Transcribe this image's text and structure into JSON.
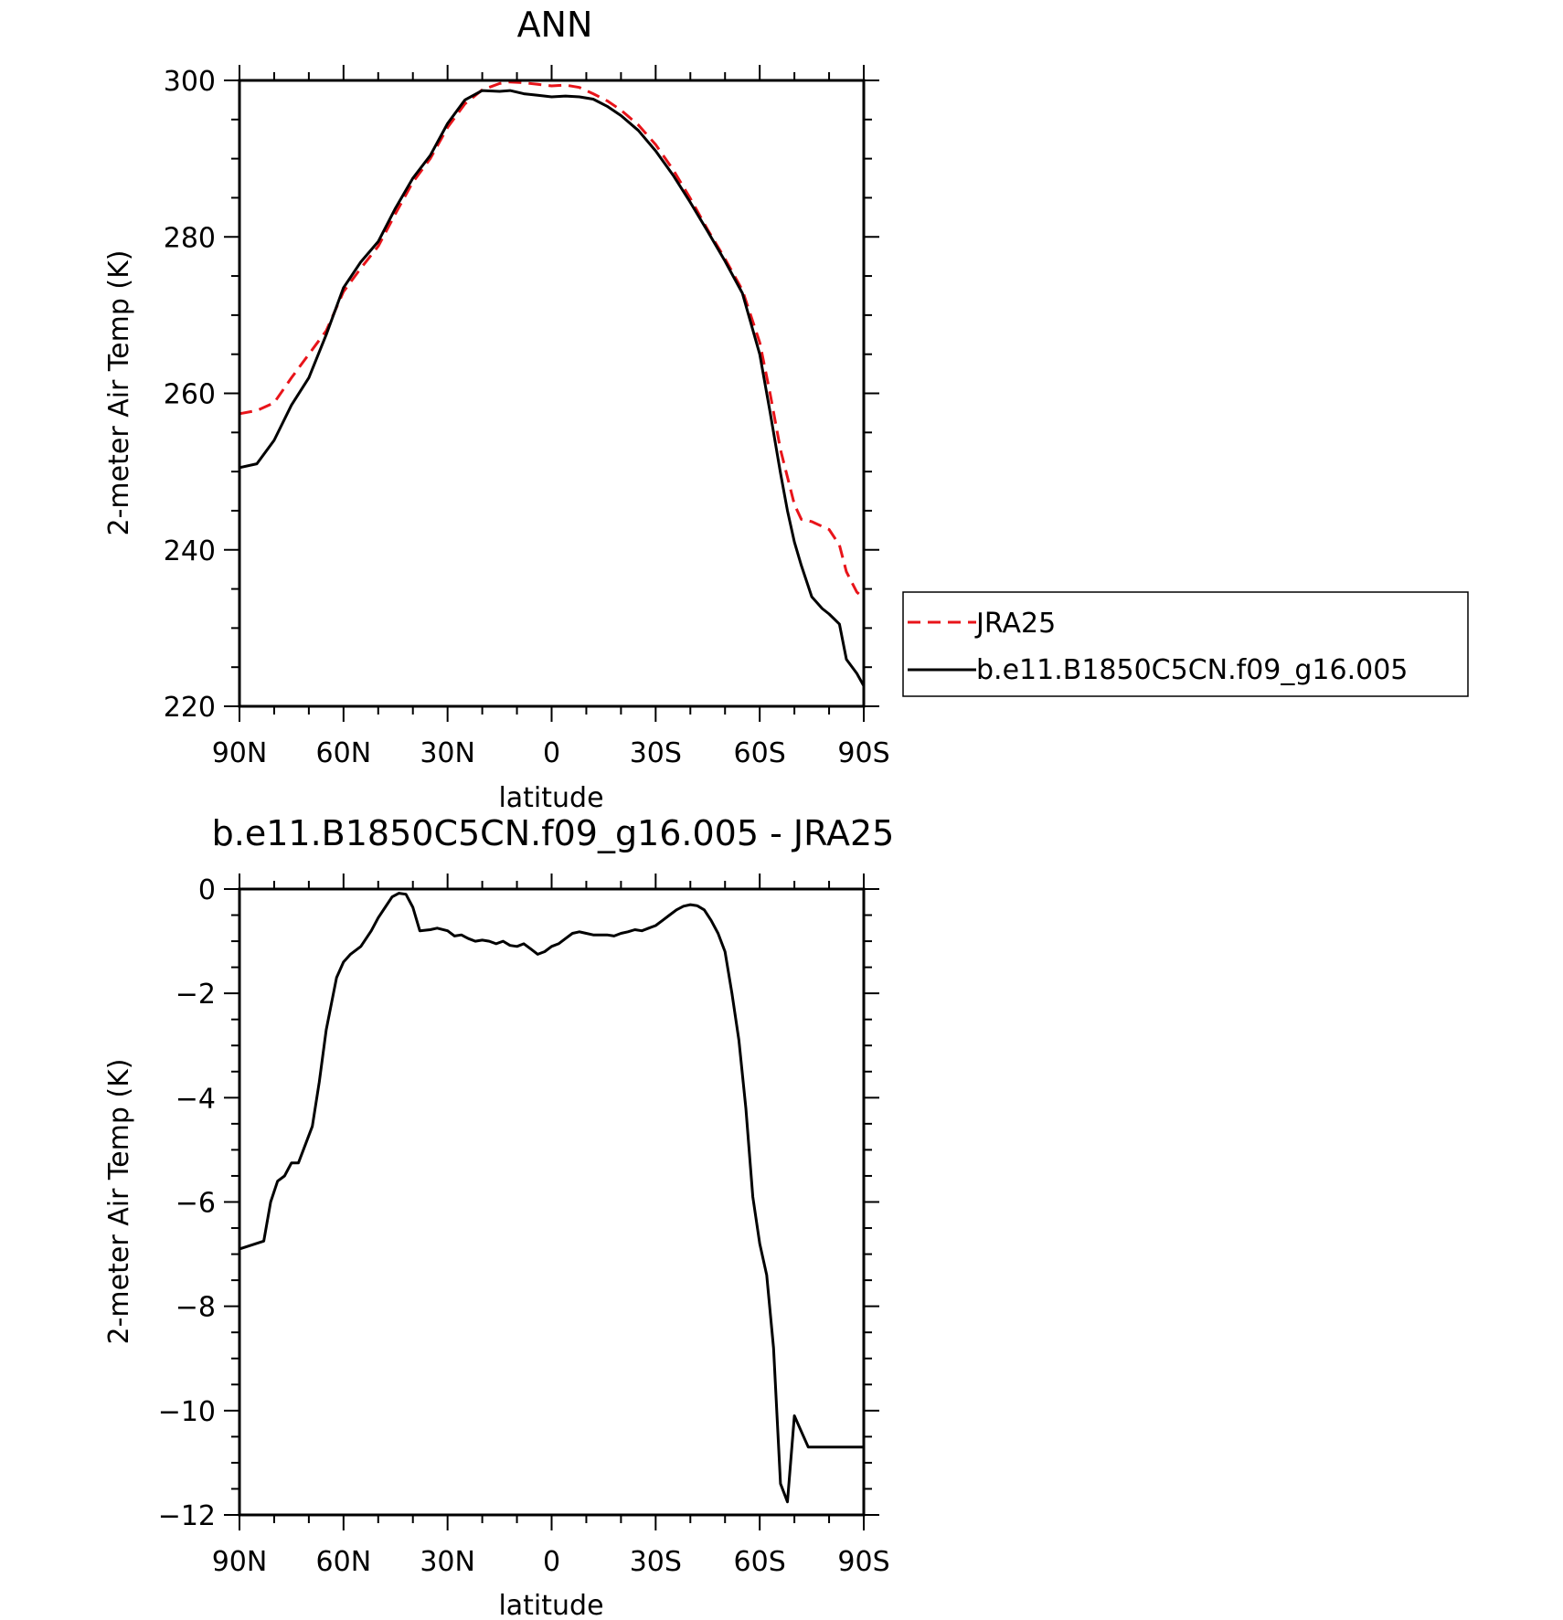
{
  "chart_data": [
    {
      "type": "line",
      "title": "ANN",
      "xlabel": "latitude",
      "ylabel": "2-meter Air Temp (K)",
      "xlim": [
        90,
        -90
      ],
      "ylim": [
        220,
        300
      ],
      "x_ticks": [
        90,
        60,
        30,
        0,
        -30,
        -60,
        -90
      ],
      "x_tick_labels": [
        "90N",
        "60N",
        "30N",
        "0",
        "30S",
        "60S",
        "90S"
      ],
      "y_ticks": [
        220,
        240,
        260,
        280,
        300
      ],
      "y_tick_labels": [
        "220",
        "240",
        "260",
        "280",
        "300"
      ],
      "grid": false,
      "legend_position": "right",
      "series": [
        {
          "name": "JRA25",
          "color": "#e8141a",
          "dash": "dashed",
          "x": [
            90,
            85,
            80,
            75,
            70,
            65,
            60,
            55,
            50,
            45,
            40,
            35,
            30,
            25,
            20,
            15,
            12,
            8,
            4,
            0,
            -4,
            -8,
            -12,
            -16,
            -20,
            -25,
            -30,
            -35,
            -40,
            -45,
            -50,
            -55,
            -60,
            -63,
            -66,
            -70,
            -72,
            -75,
            -78,
            -80,
            -83,
            -85,
            -88,
            -90
          ],
          "values": [
            257.4,
            257.8,
            258.8,
            262.0,
            265.0,
            268.0,
            273.0,
            276.0,
            278.8,
            283.0,
            287.0,
            290.0,
            294.0,
            297.0,
            298.8,
            299.6,
            299.8,
            299.7,
            299.5,
            299.3,
            299.4,
            299.1,
            298.3,
            297.4,
            296.2,
            294.3,
            291.8,
            288.6,
            284.9,
            280.9,
            277.2,
            273.2,
            266.5,
            260.0,
            252.8,
            245.8,
            243.9,
            243.6,
            243.0,
            242.6,
            240.6,
            237.2,
            234.6,
            233.8
          ]
        },
        {
          "name": "b.e11.B1850C5CN.f09_g16.005",
          "color": "#000000",
          "dash": "solid",
          "x": [
            90,
            85,
            80,
            75,
            70,
            65,
            60,
            55,
            50,
            45,
            40,
            35,
            30,
            25,
            20,
            15,
            12,
            8,
            4,
            0,
            -4,
            -8,
            -12,
            -16,
            -20,
            -25,
            -30,
            -35,
            -40,
            -45,
            -50,
            -55,
            -60,
            -63,
            -66,
            -68,
            -70,
            -72,
            -75,
            -78,
            -80,
            -83,
            -85,
            -88,
            -90
          ],
          "values": [
            250.5,
            251.0,
            254.0,
            258.5,
            262.0,
            267.5,
            273.5,
            276.8,
            279.4,
            283.7,
            287.5,
            290.4,
            294.5,
            297.5,
            298.7,
            298.6,
            298.7,
            298.3,
            298.1,
            297.9,
            298.0,
            297.9,
            297.6,
            296.7,
            295.5,
            293.6,
            291.0,
            287.9,
            284.4,
            280.7,
            276.9,
            272.8,
            265.0,
            257.6,
            249.8,
            245.0,
            241.0,
            238.0,
            234.0,
            232.5,
            231.8,
            230.5,
            226.0,
            224.2,
            222.6
          ]
        }
      ]
    },
    {
      "type": "line",
      "title": "b.e11.B1850C5CN.f09_g16.005 - JRA25",
      "xlabel": "latitude",
      "ylabel": "2-meter Air Temp (K)",
      "xlim": [
        90,
        -90
      ],
      "ylim": [
        -12,
        0
      ],
      "x_ticks": [
        90,
        60,
        30,
        0,
        -30,
        -60,
        -90
      ],
      "x_tick_labels": [
        "90N",
        "60N",
        "30N",
        "0",
        "30S",
        "60S",
        "90S"
      ],
      "y_ticks": [
        -12,
        -10,
        -8,
        -6,
        -4,
        -2,
        0
      ],
      "y_tick_labels": [
        "−12",
        "−10",
        "−8",
        "−6",
        "−4",
        "−2",
        "0"
      ],
      "grid": false,
      "series": [
        {
          "color": "#000000",
          "dash": "solid",
          "x": [
            90,
            83,
            81,
            79,
            77,
            75,
            73,
            71,
            69,
            67,
            65,
            62,
            60,
            58,
            55,
            52,
            50,
            48,
            46,
            44,
            42,
            40,
            38,
            35,
            33,
            30,
            28,
            26,
            24,
            22,
            20,
            18,
            16,
            14,
            12,
            10,
            8,
            6,
            4,
            2,
            0,
            -2,
            -4,
            -6,
            -8,
            -10,
            -12,
            -14,
            -16,
            -18,
            -20,
            -22,
            -24,
            -26,
            -28,
            -30,
            -32,
            -34,
            -36,
            -38,
            -40,
            -42,
            -44,
            -46,
            -48,
            -50,
            -52,
            -54,
            -56,
            -58,
            -60,
            -62,
            -64,
            -66,
            -68,
            -70,
            -72,
            -74,
            -76,
            -78,
            -80,
            -82,
            -84,
            -86,
            -88,
            -90
          ],
          "values": [
            -6.9,
            -6.75,
            -6.0,
            -5.6,
            -5.5,
            -5.25,
            -5.25,
            -4.9,
            -4.55,
            -3.7,
            -2.7,
            -1.7,
            -1.4,
            -1.25,
            -1.1,
            -0.8,
            -0.55,
            -0.35,
            -0.15,
            -0.08,
            -0.1,
            -0.35,
            -0.8,
            -0.78,
            -0.75,
            -0.8,
            -0.9,
            -0.88,
            -0.95,
            -1.0,
            -0.98,
            -1.0,
            -1.05,
            -1.0,
            -1.08,
            -1.1,
            -1.05,
            -1.15,
            -1.25,
            -1.2,
            -1.1,
            -1.05,
            -0.95,
            -0.85,
            -0.82,
            -0.85,
            -0.88,
            -0.88,
            -0.88,
            -0.9,
            -0.85,
            -0.82,
            -0.78,
            -0.8,
            -0.75,
            -0.7,
            -0.6,
            -0.5,
            -0.4,
            -0.33,
            -0.3,
            -0.32,
            -0.4,
            -0.6,
            -0.85,
            -1.2,
            -2.0,
            -2.9,
            -4.2,
            -5.9,
            -6.8,
            -7.4,
            -8.8,
            -11.4,
            -11.75,
            -10.1,
            -10.4,
            -10.7,
            -10.7,
            -10.7,
            -10.7,
            -10.7,
            -10.7,
            -10.7,
            -10.7,
            -10.7
          ]
        }
      ]
    }
  ]
}
